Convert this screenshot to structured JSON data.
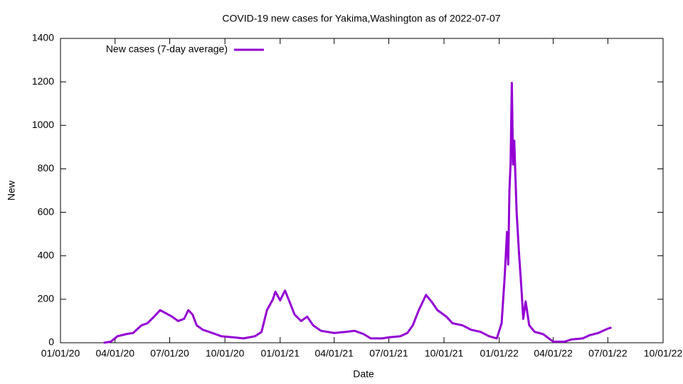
{
  "chart_data": {
    "type": "line",
    "title": "COVID-19 new cases for Yakima,Washington as of 2022-07-07",
    "xlabel": "Date",
    "ylabel": "New",
    "legend_position": "top-left",
    "grid": false,
    "xlim": [
      "2020-01-01",
      "2022-10-01"
    ],
    "xticks": [
      {
        "value": "2020-01-01",
        "label": "01/01/20"
      },
      {
        "value": "2020-04-01",
        "label": "04/01/20"
      },
      {
        "value": "2020-07-01",
        "label": "07/01/20"
      },
      {
        "value": "2020-10-01",
        "label": "10/01/20"
      },
      {
        "value": "2021-01-01",
        "label": "01/01/21"
      },
      {
        "value": "2021-04-01",
        "label": "04/01/21"
      },
      {
        "value": "2021-07-01",
        "label": "07/01/21"
      },
      {
        "value": "2021-10-01",
        "label": "10/01/21"
      },
      {
        "value": "2022-01-01",
        "label": "01/01/22"
      },
      {
        "value": "2022-04-01",
        "label": "04/01/22"
      },
      {
        "value": "2022-07-01",
        "label": "07/01/22"
      },
      {
        "value": "2022-10-01",
        "label": "10/01/22"
      }
    ],
    "ylim": [
      0,
      1400
    ],
    "yticks": [
      0,
      200,
      400,
      600,
      800,
      1000,
      1200,
      1400
    ],
    "series": [
      {
        "name": "New cases (7-day average)",
        "color": "#9400d3",
        "x": [
          "2020-03-13",
          "2020-03-25",
          "2020-04-05",
          "2020-04-20",
          "2020-05-01",
          "2020-05-15",
          "2020-05-25",
          "2020-06-05",
          "2020-06-15",
          "2020-06-25",
          "2020-07-05",
          "2020-07-15",
          "2020-07-25",
          "2020-08-01",
          "2020-08-08",
          "2020-08-15",
          "2020-08-25",
          "2020-09-10",
          "2020-09-25",
          "2020-10-15",
          "2020-11-01",
          "2020-11-20",
          "2020-12-01",
          "2020-12-10",
          "2020-12-20",
          "2020-12-24",
          "2021-01-01",
          "2021-01-09",
          "2021-01-15",
          "2021-01-25",
          "2021-02-05",
          "2021-02-15",
          "2021-02-25",
          "2021-03-10",
          "2021-04-01",
          "2021-04-20",
          "2021-05-05",
          "2021-05-20",
          "2021-06-01",
          "2021-06-20",
          "2021-07-01",
          "2021-07-20",
          "2021-08-01",
          "2021-08-10",
          "2021-08-20",
          "2021-09-01",
          "2021-09-10",
          "2021-09-20",
          "2021-10-05",
          "2021-10-15",
          "2021-11-01",
          "2021-11-15",
          "2021-12-01",
          "2021-12-15",
          "2021-12-28",
          "2022-01-05",
          "2022-01-10",
          "2022-01-14",
          "2022-01-16",
          "2022-01-18",
          "2022-01-20",
          "2022-01-22",
          "2022-01-24",
          "2022-01-26",
          "2022-01-30",
          "2022-02-03",
          "2022-02-07",
          "2022-02-10",
          "2022-02-14",
          "2022-02-20",
          "2022-03-01",
          "2022-03-15",
          "2022-04-01",
          "2022-04-20",
          "2022-05-01",
          "2022-05-20",
          "2022-06-01",
          "2022-06-15",
          "2022-07-01",
          "2022-07-07"
        ],
        "values": [
          0,
          5,
          30,
          40,
          45,
          80,
          90,
          120,
          150,
          135,
          120,
          100,
          110,
          150,
          130,
          80,
          60,
          45,
          30,
          25,
          20,
          30,
          50,
          150,
          200,
          235,
          195,
          240,
          200,
          130,
          100,
          120,
          80,
          55,
          45,
          50,
          55,
          40,
          20,
          20,
          25,
          30,
          45,
          80,
          150,
          220,
          190,
          150,
          120,
          90,
          80,
          60,
          50,
          30,
          20,
          90,
          300,
          510,
          360,
          700,
          830,
          1195,
          820,
          930,
          600,
          410,
          250,
          110,
          190,
          80,
          50,
          40,
          5,
          5,
          15,
          20,
          35,
          45,
          65,
          70
        ]
      }
    ]
  }
}
